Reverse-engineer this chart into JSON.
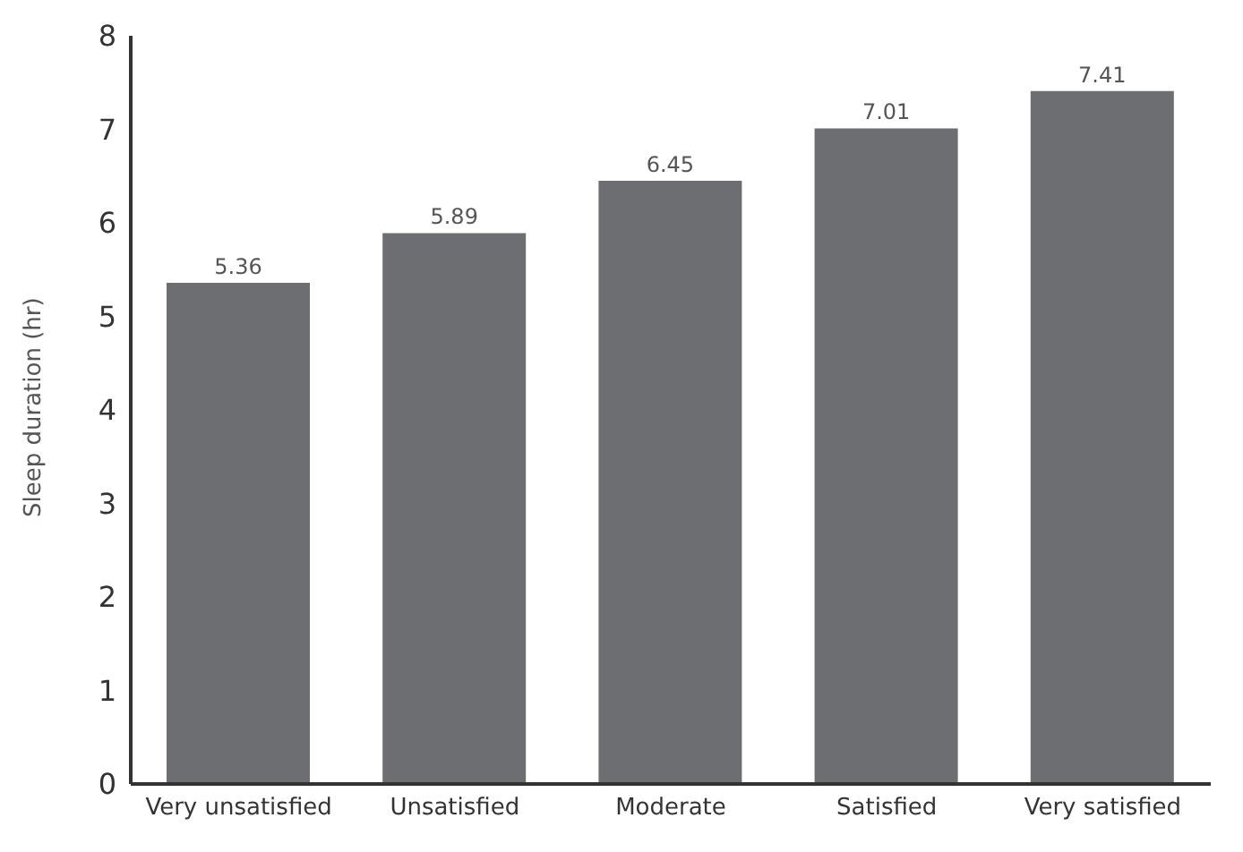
{
  "chart_data": {
    "type": "bar",
    "ylabel": "Sleep duration (hr)",
    "categories": [
      "Very unsatisfied",
      "Unsatisfied",
      "Moderate",
      "Satisfied",
      "Very satisfied"
    ],
    "values": [
      5.36,
      5.89,
      6.45,
      7.01,
      7.41
    ],
    "color": "#6d6e71",
    "ylim": [
      0,
      8
    ],
    "yticks": [
      0,
      1,
      2,
      3,
      4,
      5,
      6,
      7,
      8
    ],
    "data_labels": true
  }
}
